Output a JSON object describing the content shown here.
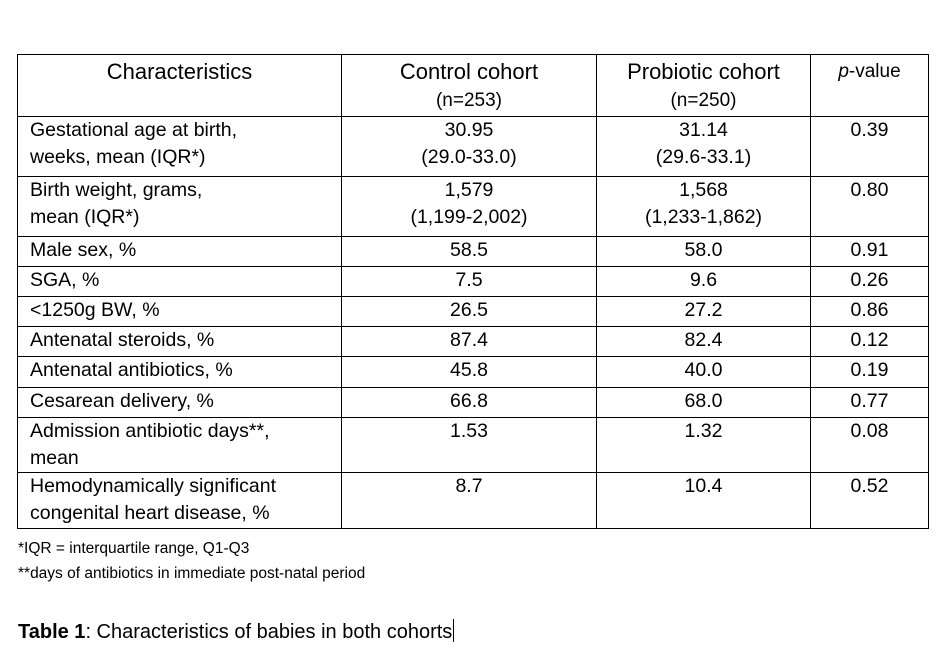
{
  "table": {
    "headers": {
      "characteristics": "Characteristics",
      "control": "Control cohort",
      "control_n": "(n=253)",
      "probiotic": "Probiotic cohort",
      "probiotic_n": "(n=250)",
      "p_italic": "p",
      "p_rest": "-value"
    },
    "rows": [
      {
        "label": [
          "Gestational age at birth,",
          "weeks, mean (IQR*)"
        ],
        "control": [
          "30.95",
          "(29.0-33.0)"
        ],
        "probiotic": [
          "31.14",
          "(29.6-33.1)"
        ],
        "p": "0.39"
      },
      {
        "label": [
          "Birth weight, grams,",
          "mean (IQR*)"
        ],
        "control": [
          "1,579",
          "(1,199-2,002)"
        ],
        "probiotic": [
          "1,568",
          "(1,233-1,862)"
        ],
        "p": "0.80"
      },
      {
        "label": [
          "Male sex, %"
        ],
        "control": [
          "58.5"
        ],
        "probiotic": [
          "58.0"
        ],
        "p": "0.91"
      },
      {
        "label": [
          "SGA, %"
        ],
        "control": [
          "7.5"
        ],
        "probiotic": [
          "9.6"
        ],
        "p": "0.26"
      },
      {
        "label": [
          "<1250g BW, %"
        ],
        "control": [
          "26.5"
        ],
        "probiotic": [
          "27.2"
        ],
        "p": "0.86"
      },
      {
        "label": [
          "Antenatal steroids, %"
        ],
        "control": [
          "87.4"
        ],
        "probiotic": [
          "82.4"
        ],
        "p": "0.12"
      },
      {
        "label": [
          "Antenatal antibiotics, %"
        ],
        "control": [
          "45.8"
        ],
        "probiotic": [
          "40.0"
        ],
        "p": "0.19"
      },
      {
        "label": [
          "Cesarean delivery, %"
        ],
        "control": [
          "66.8"
        ],
        "probiotic": [
          "68.0"
        ],
        "p": "0.77"
      },
      {
        "label": [
          "Admission antibiotic days**,",
          "mean"
        ],
        "control": [
          "1.53"
        ],
        "probiotic": [
          "1.32"
        ],
        "p": "0.08"
      },
      {
        "label": [
          "Hemodynamically significant",
          "congenital heart disease, %"
        ],
        "control": [
          "8.7"
        ],
        "probiotic": [
          "10.4"
        ],
        "p": "0.52"
      }
    ]
  },
  "footnotes": [
    "*IQR = interquartile range, Q1-Q3",
    "**days of antibiotics in immediate post-natal period"
  ],
  "caption": {
    "bold": "Table 1",
    "rest": ": Characteristics of babies in both cohorts"
  }
}
